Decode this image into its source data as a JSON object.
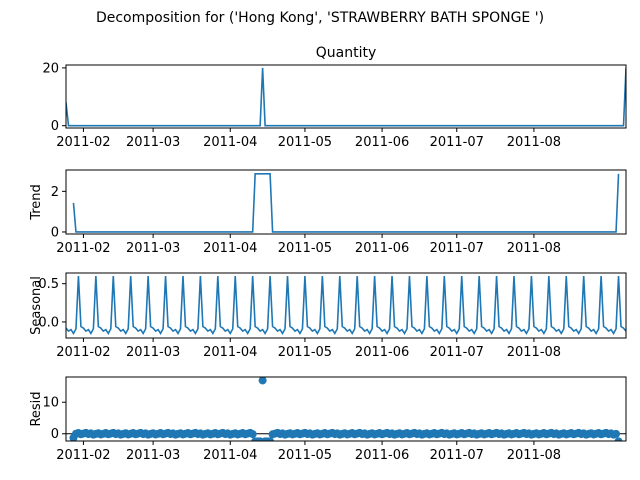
{
  "suptitle": "Decomposition for ('Hong Kong', 'STRAWBERRY BATH SPONGE ')",
  "colors": {
    "line": "#1f77b4",
    "axis": "#000000",
    "zero_line": "#000000"
  },
  "chart_data": [
    {
      "type": "line",
      "title": "Quantity",
      "ylabel": "",
      "ylim": [
        -0.8,
        21
      ],
      "yticks": [
        0,
        20
      ],
      "xticks": [
        "2011-02",
        "2011-03",
        "2011-04",
        "2011-05",
        "2011-06",
        "2011-07",
        "2011-08"
      ],
      "points": [
        [
          0,
          8
        ],
        [
          1,
          0
        ],
        [
          78,
          0
        ],
        [
          79,
          20
        ],
        [
          80,
          0
        ],
        [
          224,
          0
        ],
        [
          225,
          20
        ]
      ]
    },
    {
      "type": "line",
      "title": "",
      "ylabel": "Trend",
      "ylim": [
        -0.1,
        3.05
      ],
      "yticks": [
        0,
        2
      ],
      "xticks": [
        "2011-02",
        "2011-03",
        "2011-04",
        "2011-05",
        "2011-06",
        "2011-07",
        "2011-08"
      ],
      "points": [
        [
          3,
          1.43
        ],
        [
          4,
          0
        ],
        [
          75,
          0
        ],
        [
          76,
          2.86
        ],
        [
          82,
          2.86
        ],
        [
          83,
          0
        ],
        [
          221,
          0
        ],
        [
          222,
          2.86
        ]
      ]
    },
    {
      "type": "line",
      "title": "",
      "ylabel": "Seasonal",
      "ylim": [
        -0.21,
        0.64
      ],
      "yticks": [
        0,
        0.5
      ],
      "ytick_labels": [
        "0.0",
        "0.5"
      ],
      "xticks": [
        "2011-02",
        "2011-03",
        "2011-04",
        "2011-05",
        "2011-06",
        "2011-07",
        "2011-08"
      ],
      "period": 7,
      "peak_offset": 5,
      "pattern": [
        -0.08,
        -0.12,
        -0.1,
        -0.15,
        -0.09,
        0.6,
        -0.06
      ]
    },
    {
      "type": "scatter",
      "title": "",
      "ylabel": "Resid",
      "ylim": [
        -2.3,
        18
      ],
      "yticks": [
        0,
        10
      ],
      "xticks": [
        "2011-02",
        "2011-03",
        "2011-04",
        "2011-05",
        "2011-06",
        "2011-07",
        "2011-08"
      ],
      "baseline": 0,
      "outliers": [
        [
          79,
          16.9
        ],
        [
          3,
          -1.3
        ],
        [
          76,
          -2.4
        ],
        [
          77,
          -2.4
        ],
        [
          78,
          -2.4
        ],
        [
          80,
          -2.4
        ],
        [
          81,
          -2.4
        ],
        [
          82,
          -2.4
        ],
        [
          222,
          -2.4
        ]
      ]
    }
  ]
}
